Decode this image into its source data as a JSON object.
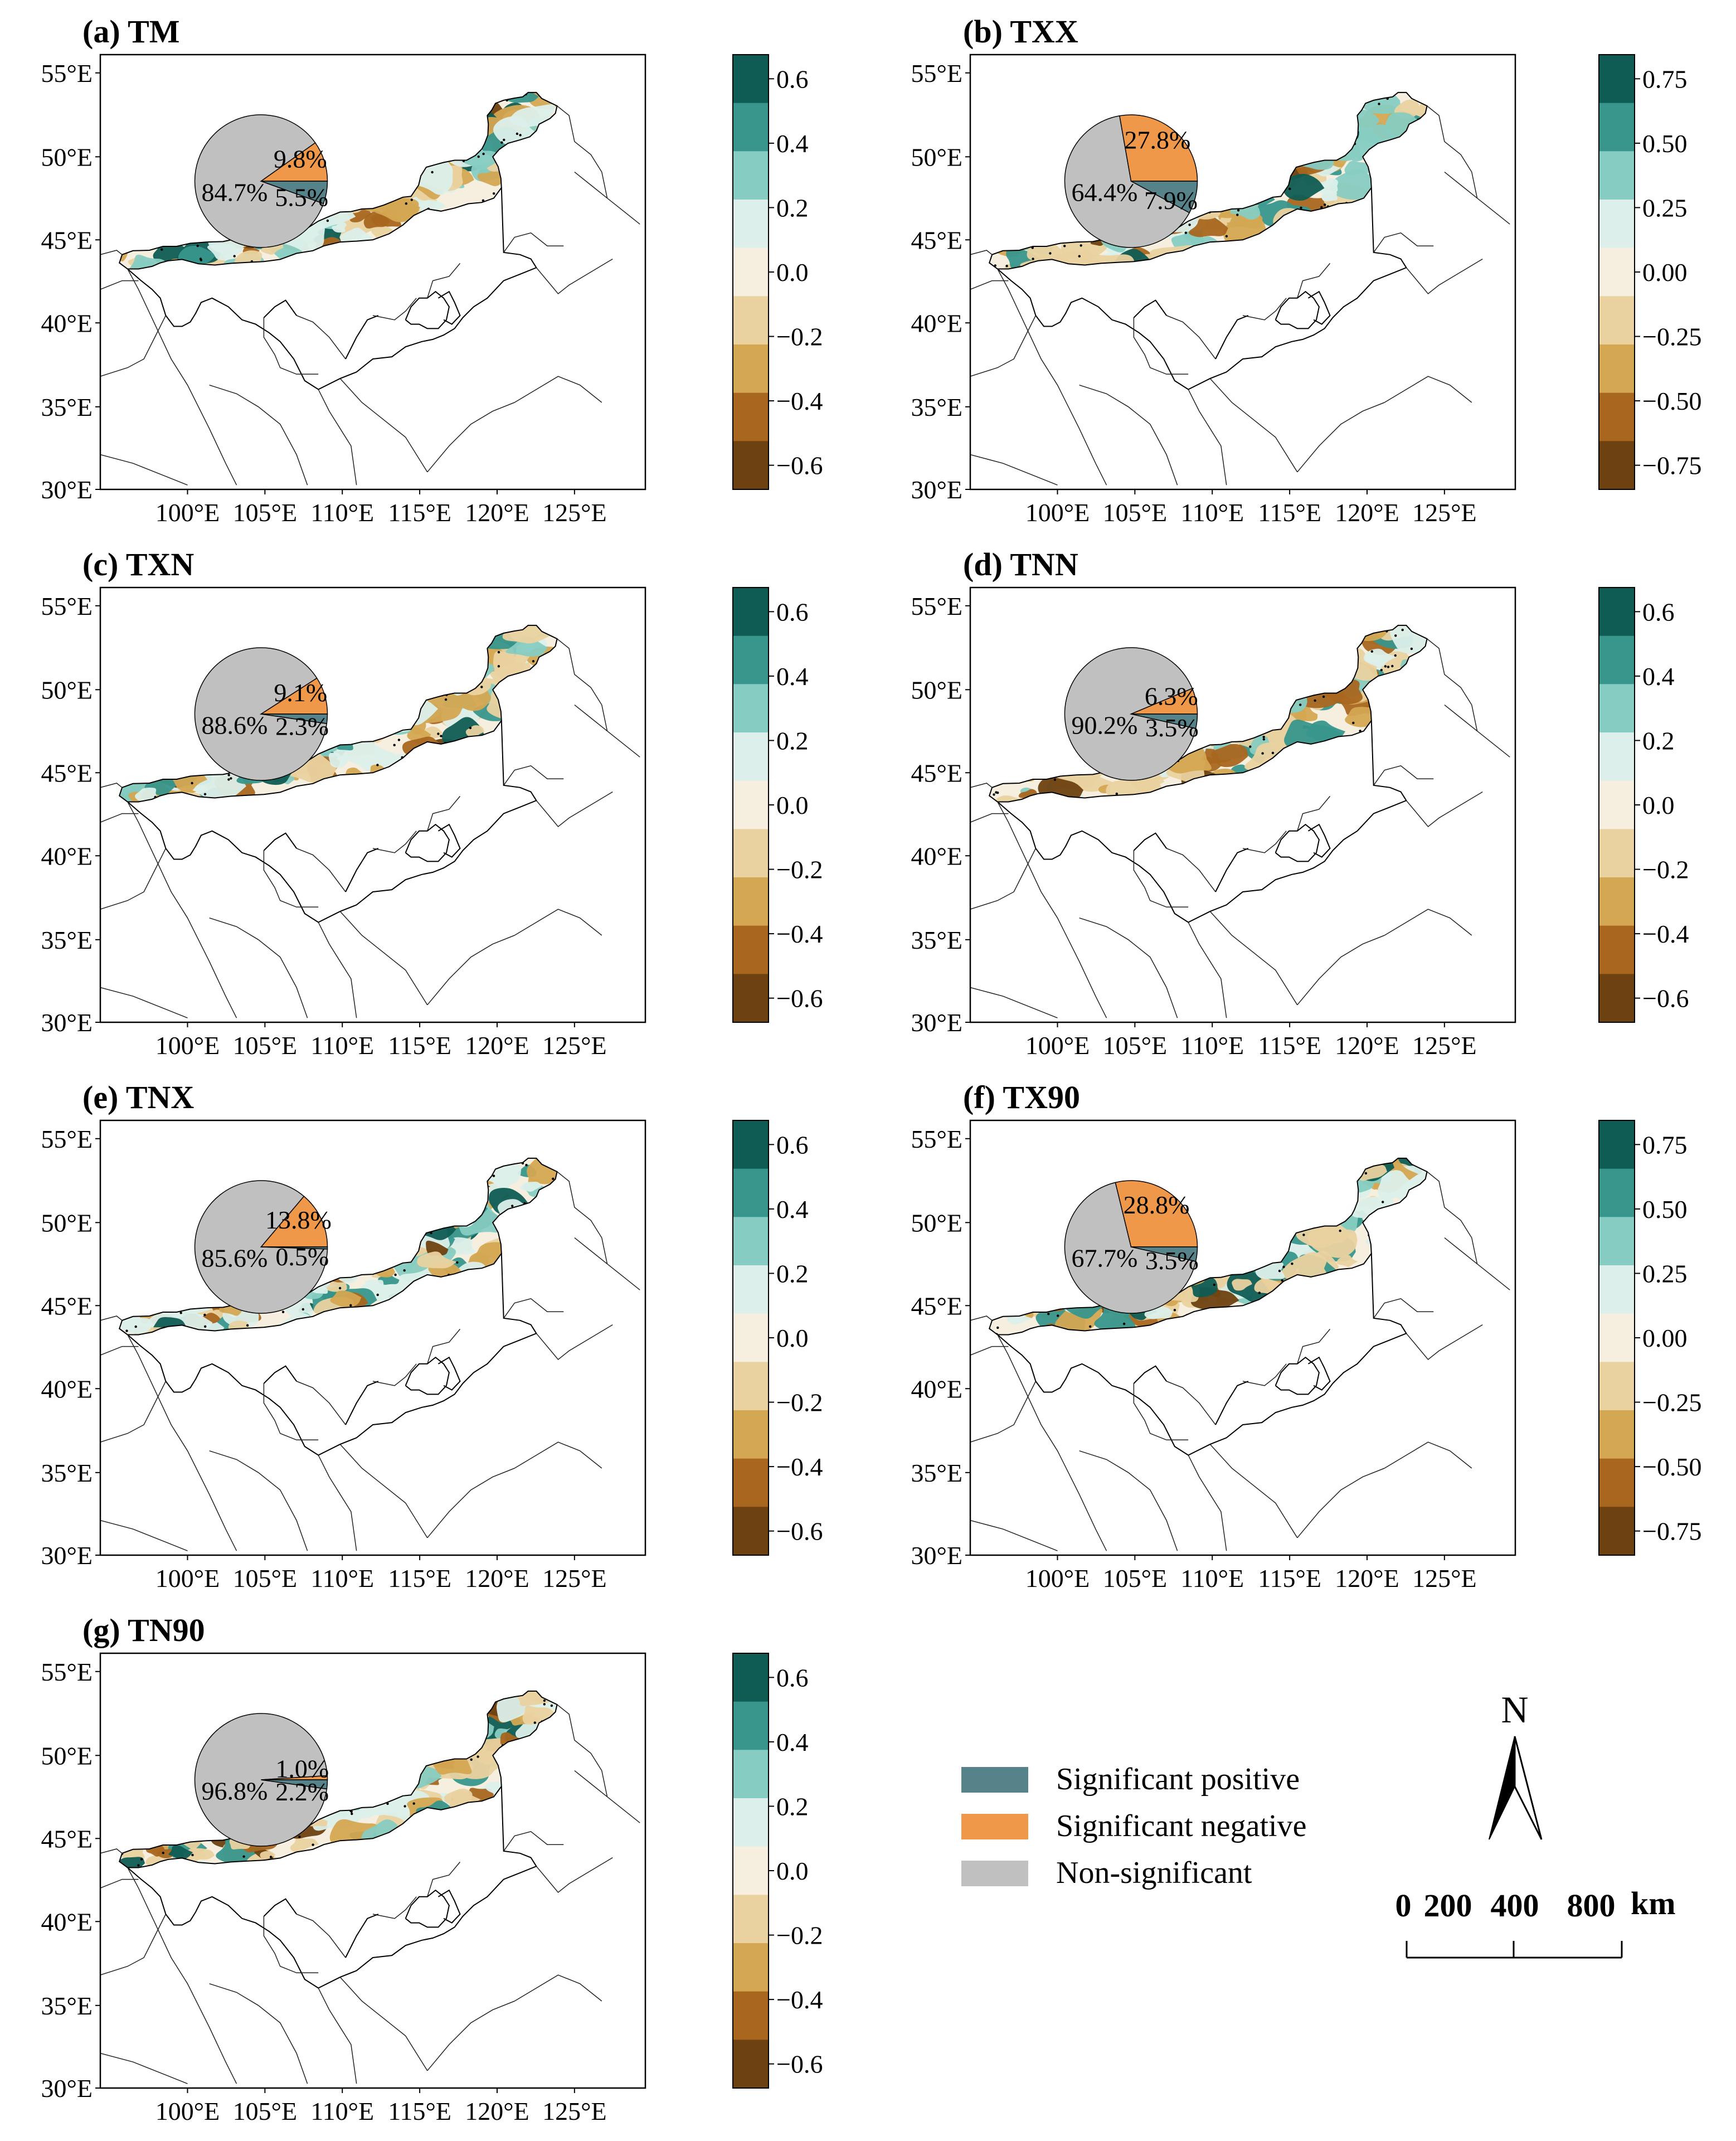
{
  "figure": {
    "lon_ticks": [
      "100°E",
      "105°E",
      "110°E",
      "115°E",
      "120°E",
      "125°E"
    ],
    "lat_ticks": [
      "55°E",
      "50°E",
      "45°E",
      "40°E",
      "35°E",
      "30°E"
    ]
  },
  "colors": {
    "significant_positive": "#56838a",
    "significant_negative": "#f0984a",
    "non_significant": "#c0c0c0",
    "scale_brown_to_teal": [
      "#6e4110",
      "#a8661f",
      "#d4a752",
      "#ead2a0",
      "#f6efdf",
      "#dcefea",
      "#87ccc2",
      "#38968c",
      "#0f5c54"
    ]
  },
  "legend": {
    "positive": "Significant positive",
    "negative": "Significant negative",
    "nonsig": "Non-significant"
  },
  "north_label": "N",
  "scale_bar": {
    "values": [
      "0",
      "200",
      "400",
      "800"
    ],
    "unit": "km"
  },
  "chart_data": [
    {
      "type": "pie",
      "panel": "(a) TM",
      "slices": [
        {
          "name": "Significant positive",
          "value": 5.5,
          "label": "5.5%"
        },
        {
          "name": "Significant negative",
          "value": 9.8,
          "label": "9.8%"
        },
        {
          "name": "Non-significant",
          "value": 84.7,
          "label": "84.7%"
        }
      ],
      "colorbar": [
        "0.6",
        "0.4",
        "0.2",
        "0.0",
        "−0.2",
        "−0.4",
        "−0.6"
      ]
    },
    {
      "type": "pie",
      "panel": "(b) TXX",
      "slices": [
        {
          "name": "Significant positive",
          "value": 7.9,
          "label": "7.9%"
        },
        {
          "name": "Significant negative",
          "value": 27.8,
          "label": "27.8%"
        },
        {
          "name": "Non-significant",
          "value": 64.4,
          "label": "64.4%"
        }
      ],
      "colorbar": [
        "0.75",
        "0.50",
        "0.25",
        "0.00",
        "−0.25",
        "−0.50",
        "−0.75"
      ]
    },
    {
      "type": "pie",
      "panel": "(c) TXN",
      "slices": [
        {
          "name": "Significant positive",
          "value": 2.3,
          "label": "2.3%"
        },
        {
          "name": "Significant negative",
          "value": 9.1,
          "label": "9.1%"
        },
        {
          "name": "Non-significant",
          "value": 88.6,
          "label": "88.6%"
        }
      ],
      "colorbar": [
        "0.6",
        "0.4",
        "0.2",
        "0.0",
        "−0.2",
        "−0.4",
        "−0.6"
      ]
    },
    {
      "type": "pie",
      "panel": "(d) TNN",
      "slices": [
        {
          "name": "Significant positive",
          "value": 3.5,
          "label": "3.5%"
        },
        {
          "name": "Significant negative",
          "value": 6.3,
          "label": "6.3%"
        },
        {
          "name": "Non-significant",
          "value": 90.2,
          "label": "90.2%"
        }
      ],
      "colorbar": [
        "0.6",
        "0.4",
        "0.2",
        "0.0",
        "−0.2",
        "−0.4",
        "−0.6"
      ]
    },
    {
      "type": "pie",
      "panel": "(e) TNX",
      "slices": [
        {
          "name": "Significant positive",
          "value": 0.5,
          "label": "0.5%"
        },
        {
          "name": "Significant negative",
          "value": 13.8,
          "label": "13.8%"
        },
        {
          "name": "Non-significant",
          "value": 85.6,
          "label": "85.6%"
        }
      ],
      "colorbar": [
        "0.6",
        "0.4",
        "0.2",
        "0.0",
        "−0.2",
        "−0.4",
        "−0.6"
      ]
    },
    {
      "type": "pie",
      "panel": "(f) TX90",
      "slices": [
        {
          "name": "Significant positive",
          "value": 3.5,
          "label": "3.5%"
        },
        {
          "name": "Significant negative",
          "value": 28.8,
          "label": "28.8%"
        },
        {
          "name": "Non-significant",
          "value": 67.7,
          "label": "67.7%"
        }
      ],
      "colorbar": [
        "0.75",
        "0.50",
        "0.25",
        "0.00",
        "−0.25",
        "−0.50",
        "−0.75"
      ]
    },
    {
      "type": "pie",
      "panel": "(g) TN90",
      "slices": [
        {
          "name": "Significant positive",
          "value": 2.2,
          "label": "2.2%"
        },
        {
          "name": "Significant negative",
          "value": 1.0,
          "label": "1.0%"
        },
        {
          "name": "Non-significant",
          "value": 96.8,
          "label": "96.8%"
        }
      ],
      "colorbar": [
        "0.6",
        "0.4",
        "0.2",
        "0.0",
        "−0.2",
        "−0.4",
        "−0.6"
      ]
    }
  ]
}
